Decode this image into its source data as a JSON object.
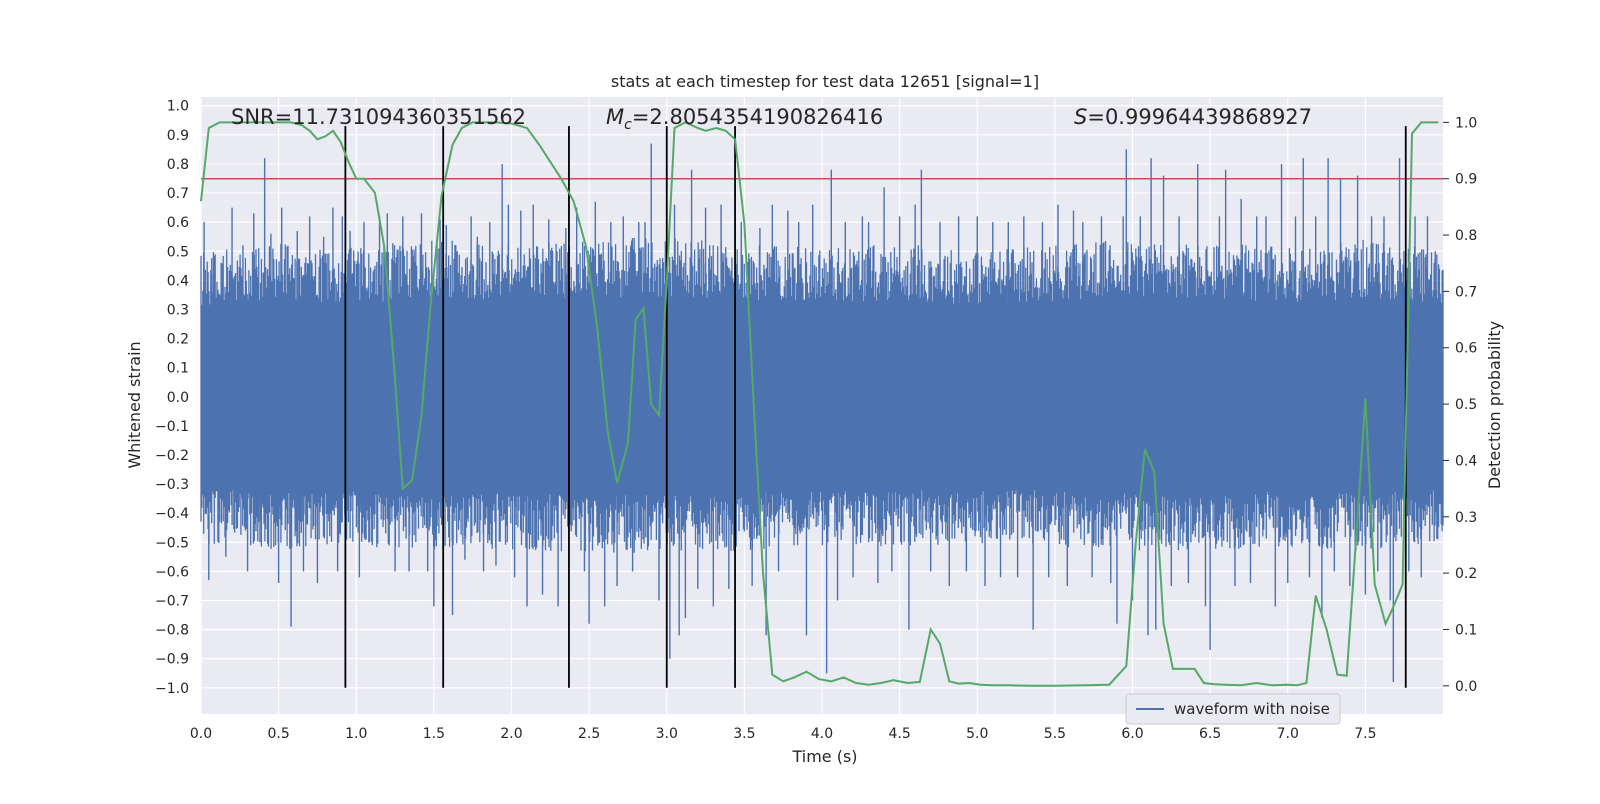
{
  "chart_data": {
    "type": "line",
    "title": "stats at each timestep for test data 12651 [signal=1]",
    "xlabel": "Time (s)",
    "ylabel_left": "Whitened strain",
    "ylabel_right": "Detection probability",
    "xlim": [
      0.0,
      8.0
    ],
    "ylim_left": [
      -1.09,
      1.03
    ],
    "ylim_right": [
      -0.05,
      1.045
    ],
    "x_ticks": [
      0.0,
      0.5,
      1.0,
      1.5,
      2.0,
      2.5,
      3.0,
      3.5,
      4.0,
      4.5,
      5.0,
      5.5,
      6.0,
      6.5,
      7.0,
      7.5
    ],
    "x_tick_labels": [
      "0.0",
      "0.5",
      "1.0",
      "1.5",
      "2.0",
      "2.5",
      "3.0",
      "3.5",
      "4.0",
      "4.5",
      "5.0",
      "5.5",
      "6.0",
      "6.5",
      "7.0",
      "7.5"
    ],
    "y_left_ticks": [
      1.0,
      0.9,
      0.8,
      0.7,
      0.6,
      0.5,
      0.4,
      0.3,
      0.2,
      0.1,
      0.0,
      -0.1,
      -0.2,
      -0.3,
      -0.4,
      -0.5,
      -0.6,
      -0.7,
      -0.8,
      -0.9,
      -1.0
    ],
    "y_left_tick_labels": [
      "1.0",
      "0.9",
      "0.8",
      "0.7",
      "0.6",
      "0.5",
      "0.4",
      "0.3",
      "0.2",
      "0.1",
      "0.0",
      "−0.1",
      "−0.2",
      "−0.3",
      "−0.4",
      "−0.5",
      "−0.6",
      "−0.7",
      "−0.8",
      "−0.9",
      "−1.0"
    ],
    "y_right_ticks": [
      1.0,
      0.9,
      0.8,
      0.7,
      0.6,
      0.5,
      0.4,
      0.3,
      0.2,
      0.1,
      0.0
    ],
    "y_right_tick_labels": [
      "1.0",
      "0.9",
      "0.8",
      "0.7",
      "0.6",
      "0.5",
      "0.4",
      "0.3",
      "0.2",
      "0.1",
      "0.0"
    ],
    "grid": true,
    "legend": {
      "position": "lower-right",
      "entries": [
        "waveform with noise"
      ]
    },
    "annotations": {
      "snr": "SNR=11.731094360351562",
      "mc_symbol": "M",
      "mc_subscript": "c",
      "mc_value": "=2.8054354190826416",
      "s_symbol": "S",
      "s_value": "=0.99964439868927"
    },
    "threshold": {
      "value": 0.9,
      "axis": "right"
    },
    "event_markers_x": [
      0.93,
      1.56,
      2.37,
      3.0,
      3.44,
      7.76
    ],
    "event_marker_range_left": [
      -1.0,
      0.93
    ],
    "waveform": {
      "name": "waveform with noise",
      "color": "#4c72b0",
      "envelope": {
        "x": [
          0.0,
          0.5,
          1.0,
          1.5,
          2.0,
          2.5,
          3.0,
          3.5,
          4.0,
          4.5,
          5.0,
          5.5,
          6.0,
          6.5,
          7.0,
          7.5,
          8.0
        ],
        "upper": [
          0.42,
          0.44,
          0.43,
          0.45,
          0.44,
          0.45,
          0.46,
          0.44,
          0.43,
          0.44,
          0.42,
          0.44,
          0.45,
          0.44,
          0.43,
          0.45,
          0.42
        ],
        "lower": [
          -0.42,
          -0.44,
          -0.43,
          -0.44,
          -0.44,
          -0.45,
          -0.45,
          -0.44,
          -0.43,
          -0.43,
          -0.42,
          -0.43,
          -0.44,
          -0.44,
          -0.43,
          -0.44,
          -0.42
        ]
      },
      "spikes": [
        [
          0.02,
          0.6
        ],
        [
          0.08,
          0.42
        ],
        [
          0.05,
          -0.63
        ],
        [
          0.13,
          0.46
        ],
        [
          0.16,
          -0.55
        ],
        [
          0.2,
          0.65
        ],
        [
          0.27,
          0.52
        ],
        [
          0.3,
          -0.6
        ],
        [
          0.34,
          0.63
        ],
        [
          0.38,
          -0.5
        ],
        [
          0.41,
          0.82
        ],
        [
          0.45,
          0.56
        ],
        [
          0.5,
          -0.64
        ],
        [
          0.52,
          0.65
        ],
        [
          0.58,
          -0.79
        ],
        [
          0.62,
          0.57
        ],
        [
          0.66,
          -0.6
        ],
        [
          0.7,
          0.62
        ],
        [
          0.75,
          -0.64
        ],
        [
          0.79,
          0.55
        ],
        [
          0.85,
          0.65
        ],
        [
          0.88,
          -0.6
        ],
        [
          0.91,
          0.62
        ],
        [
          0.96,
          0.57
        ],
        [
          1.02,
          -0.62
        ],
        [
          1.05,
          0.6
        ],
        [
          1.1,
          -0.5
        ],
        [
          1.15,
          0.62
        ],
        [
          1.2,
          0.63
        ],
        [
          1.25,
          -0.6
        ],
        [
          1.3,
          0.62
        ],
        [
          1.34,
          -0.6
        ],
        [
          1.42,
          0.63
        ],
        [
          1.46,
          -0.6
        ],
        [
          1.5,
          -0.72
        ],
        [
          1.54,
          0.61
        ],
        [
          1.58,
          0.59
        ],
        [
          1.62,
          -0.75
        ],
        [
          1.65,
          0.5
        ],
        [
          1.7,
          -0.56
        ],
        [
          1.74,
          0.62
        ],
        [
          1.78,
          0.55
        ],
        [
          1.82,
          -0.6
        ],
        [
          1.86,
          0.6
        ],
        [
          1.9,
          -0.58
        ],
        [
          1.94,
          0.8
        ],
        [
          1.98,
          0.66
        ],
        [
          2.02,
          -0.62
        ],
        [
          2.06,
          0.64
        ],
        [
          2.1,
          -0.72
        ],
        [
          2.14,
          0.66
        ],
        [
          2.2,
          -0.68
        ],
        [
          2.24,
          0.61
        ],
        [
          2.3,
          -0.72
        ],
        [
          2.35,
          0.58
        ],
        [
          2.42,
          0.65
        ],
        [
          2.47,
          -0.6
        ],
        [
          2.5,
          -0.78
        ],
        [
          2.54,
          0.67
        ],
        [
          2.6,
          -0.72
        ],
        [
          2.64,
          0.6
        ],
        [
          2.68,
          -0.65
        ],
        [
          2.72,
          0.62
        ],
        [
          2.78,
          -0.6
        ],
        [
          2.82,
          0.6
        ],
        [
          2.86,
          0.6
        ],
        [
          2.9,
          0.87
        ],
        [
          2.95,
          -0.7
        ],
        [
          3.02,
          -0.9
        ],
        [
          3.05,
          0.66
        ],
        [
          3.08,
          -0.82
        ],
        [
          3.12,
          -0.76
        ],
        [
          3.16,
          0.78
        ],
        [
          3.2,
          -0.66
        ],
        [
          3.25,
          0.65
        ],
        [
          3.3,
          -0.72
        ],
        [
          3.35,
          0.66
        ],
        [
          3.4,
          -0.66
        ],
        [
          3.48,
          0.6
        ],
        [
          3.55,
          -0.65
        ],
        [
          3.6,
          0.58
        ],
        [
          3.64,
          -0.82
        ],
        [
          3.68,
          0.66
        ],
        [
          3.72,
          -0.6
        ],
        [
          3.78,
          0.64
        ],
        [
          3.85,
          0.6
        ],
        [
          3.9,
          -0.82
        ],
        [
          3.94,
          0.66
        ],
        [
          4.03,
          -0.95
        ],
        [
          4.06,
          0.78
        ],
        [
          4.1,
          -0.7
        ],
        [
          4.15,
          0.6
        ],
        [
          4.2,
          -0.62
        ],
        [
          4.26,
          0.62
        ],
        [
          4.3,
          0.6
        ],
        [
          4.36,
          -0.64
        ],
        [
          4.4,
          0.72
        ],
        [
          4.45,
          -0.6
        ],
        [
          4.5,
          0.62
        ],
        [
          4.56,
          -0.8
        ],
        [
          4.6,
          0.66
        ],
        [
          4.64,
          0.78
        ],
        [
          4.7,
          -0.6
        ],
        [
          4.76,
          0.6
        ],
        [
          4.82,
          -0.65
        ],
        [
          4.88,
          0.62
        ],
        [
          4.93,
          -0.6
        ],
        [
          5.0,
          0.62
        ],
        [
          5.05,
          -0.65
        ],
        [
          5.1,
          0.6
        ],
        [
          5.15,
          -0.62
        ],
        [
          5.2,
          0.6
        ],
        [
          5.26,
          -0.62
        ],
        [
          5.3,
          0.62
        ],
        [
          5.36,
          -0.8
        ],
        [
          5.42,
          0.6
        ],
        [
          5.46,
          -0.62
        ],
        [
          5.52,
          0.66
        ],
        [
          5.58,
          -0.65
        ],
        [
          5.62,
          0.64
        ],
        [
          5.68,
          0.6
        ],
        [
          5.74,
          -0.62
        ],
        [
          5.8,
          0.62
        ],
        [
          5.86,
          -0.64
        ],
        [
          5.9,
          -0.78
        ],
        [
          5.94,
          0.62
        ],
        [
          5.96,
          0.85
        ],
        [
          6.0,
          -0.7
        ],
        [
          6.05,
          0.62
        ],
        [
          6.1,
          -0.82
        ],
        [
          6.12,
          0.82
        ],
        [
          6.15,
          -0.8
        ],
        [
          6.2,
          0.76
        ],
        [
          6.25,
          -0.65
        ],
        [
          6.3,
          0.62
        ],
        [
          6.36,
          -0.64
        ],
        [
          6.42,
          0.8
        ],
        [
          6.47,
          -0.72
        ],
        [
          6.5,
          -0.87
        ],
        [
          6.56,
          0.62
        ],
        [
          6.6,
          0.78
        ],
        [
          6.66,
          -0.65
        ],
        [
          6.7,
          0.68
        ],
        [
          6.76,
          -0.64
        ],
        [
          6.8,
          0.62
        ],
        [
          6.86,
          0.62
        ],
        [
          6.92,
          -0.72
        ],
        [
          6.96,
          0.8
        ],
        [
          7.0,
          -0.64
        ],
        [
          7.05,
          0.62
        ],
        [
          7.1,
          0.82
        ],
        [
          7.14,
          -0.62
        ],
        [
          7.18,
          0.62
        ],
        [
          7.22,
          -0.76
        ],
        [
          7.26,
          0.82
        ],
        [
          7.3,
          -0.6
        ],
        [
          7.34,
          0.75
        ],
        [
          7.4,
          -0.65
        ],
        [
          7.45,
          0.76
        ],
        [
          7.5,
          -0.68
        ],
        [
          7.54,
          0.62
        ],
        [
          7.58,
          -0.6
        ],
        [
          7.62,
          0.62
        ],
        [
          7.66,
          -0.7
        ],
        [
          7.68,
          -0.98
        ],
        [
          7.72,
          0.82
        ],
        [
          7.78,
          -0.6
        ],
        [
          7.82,
          0.62
        ],
        [
          7.86,
          -0.62
        ],
        [
          7.9,
          0.62
        ],
        [
          7.95,
          0.5
        ]
      ]
    },
    "detection_probability": {
      "color": "#55a868",
      "x": [
        0.0,
        0.05,
        0.12,
        0.25,
        0.4,
        0.5,
        0.58,
        0.65,
        0.7,
        0.75,
        0.8,
        0.85,
        0.9,
        0.95,
        1.0,
        1.05,
        1.12,
        1.18,
        1.24,
        1.3,
        1.36,
        1.42,
        1.48,
        1.55,
        1.62,
        1.68,
        1.75,
        1.82,
        1.9,
        2.0,
        2.1,
        2.18,
        2.25,
        2.32,
        2.4,
        2.48,
        2.55,
        2.62,
        2.68,
        2.75,
        2.8,
        2.85,
        2.9,
        2.95,
        3.0,
        3.05,
        3.12,
        3.2,
        3.25,
        3.32,
        3.38,
        3.44,
        3.5,
        3.56,
        3.62,
        3.68,
        3.75,
        3.82,
        3.9,
        3.98,
        4.06,
        4.14,
        4.22,
        4.3,
        4.38,
        4.46,
        4.55,
        4.63,
        4.7,
        4.76,
        4.82,
        4.88,
        4.95,
        5.02,
        5.1,
        5.2,
        5.35,
        5.5,
        5.7,
        5.85,
        5.96,
        6.02,
        6.08,
        6.14,
        6.2,
        6.26,
        6.32,
        6.4,
        6.46,
        6.52,
        6.6,
        6.7,
        6.8,
        6.9,
        7.0,
        7.06,
        7.12,
        7.18,
        7.25,
        7.32,
        7.38,
        7.45,
        7.5,
        7.56,
        7.63,
        7.68,
        7.74,
        7.8,
        7.86,
        7.92,
        7.97
      ],
      "y": [
        0.86,
        0.99,
        1.0,
        1.0,
        1.0,
        1.0,
        1.0,
        0.995,
        0.985,
        0.97,
        0.975,
        0.985,
        0.965,
        0.93,
        0.9,
        0.9,
        0.875,
        0.78,
        0.58,
        0.35,
        0.365,
        0.48,
        0.68,
        0.87,
        0.96,
        0.99,
        1.0,
        1.0,
        1.0,
        0.998,
        0.99,
        0.96,
        0.93,
        0.9,
        0.86,
        0.78,
        0.64,
        0.45,
        0.36,
        0.43,
        0.65,
        0.67,
        0.5,
        0.48,
        0.72,
        0.99,
        1.0,
        0.99,
        0.985,
        0.99,
        0.985,
        0.97,
        0.82,
        0.5,
        0.2,
        0.02,
        0.008,
        0.015,
        0.025,
        0.012,
        0.008,
        0.015,
        0.005,
        0.002,
        0.005,
        0.01,
        0.005,
        0.007,
        0.1,
        0.075,
        0.008,
        0.004,
        0.005,
        0.002,
        0.001,
        0.001,
        0.0,
        0.0,
        0.001,
        0.002,
        0.035,
        0.25,
        0.42,
        0.38,
        0.11,
        0.03,
        0.03,
        0.03,
        0.005,
        0.003,
        0.002,
        0.001,
        0.005,
        0.001,
        0.002,
        0.001,
        0.005,
        0.16,
        0.1,
        0.02,
        0.018,
        0.3,
        0.51,
        0.18,
        0.11,
        0.14,
        0.18,
        0.98,
        1.0,
        1.0,
        1.0
      ]
    }
  }
}
